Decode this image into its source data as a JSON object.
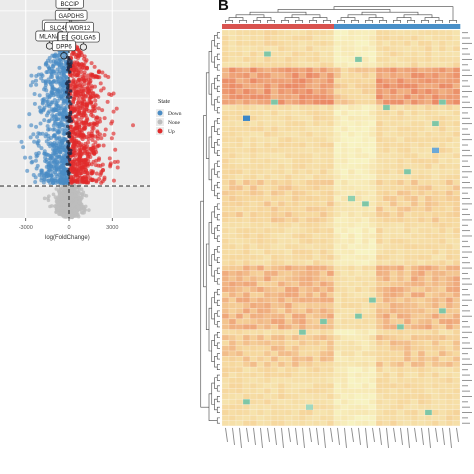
{
  "panel_labels": {
    "right": "B"
  },
  "chart_data": [
    {
      "type": "scatter",
      "xlabel": "log(FoldChange)",
      "ylabel": "",
      "xlim": [
        -5200,
        5200
      ],
      "ylim": [
        0,
        1
      ],
      "x_ticks": [
        -3000,
        0,
        3000
      ],
      "x_tick_labels": [
        "-3000",
        "0",
        "3000"
      ],
      "threshold_lines": {
        "vertical": 0,
        "horizontal": "dashed, just above base of cloud"
      },
      "legend": {
        "title": "State",
        "placement": "right",
        "entries": [
          {
            "label": "Down",
            "color": "#4a8cc4"
          },
          {
            "label": "None",
            "color": "#bdbdbd"
          },
          {
            "label": "Up",
            "color": "#e02b2b"
          }
        ]
      },
      "annotated_genes": [
        {
          "label": "BCCIP",
          "x": 50,
          "y": 0.985
        },
        {
          "label": "GAPDHS",
          "x": 150,
          "y": 0.93
        },
        {
          "label": "TYRP1",
          "x": -900,
          "y": 0.885
        },
        {
          "label": "SLC45A2",
          "x": -450,
          "y": 0.875
        },
        {
          "label": "WDR12",
          "x": 750,
          "y": 0.875
        },
        {
          "label": "MLANA",
          "x": -1350,
          "y": 0.835
        },
        {
          "label": "TYR",
          "x": -150,
          "y": 0.83
        },
        {
          "label": "EDNRB",
          "x": 200,
          "y": 0.83
        },
        {
          "label": "GOLGA5",
          "x": 1000,
          "y": 0.83
        },
        {
          "label": "DPP6",
          "x": -350,
          "y": 0.79
        }
      ],
      "grid": true
    },
    {
      "type": "heatmap",
      "rows": 74,
      "columns": 34,
      "column_annotation": {
        "colors": [
          "#d9534f",
          "#4a90c8"
        ],
        "split": 16
      },
      "color_scale": {
        "low": "#f7f3c2",
        "mid": "#f6d79d",
        "high": "#e87a5a",
        "outlier": "#7fc6a6"
      },
      "row_dendrogram": true,
      "column_dendrogram": true
    }
  ],
  "colors": {
    "down": "#4a8cc4",
    "none": "#bdbdbd",
    "up": "#e02b2b",
    "panel_bg": "#ebebeb"
  }
}
